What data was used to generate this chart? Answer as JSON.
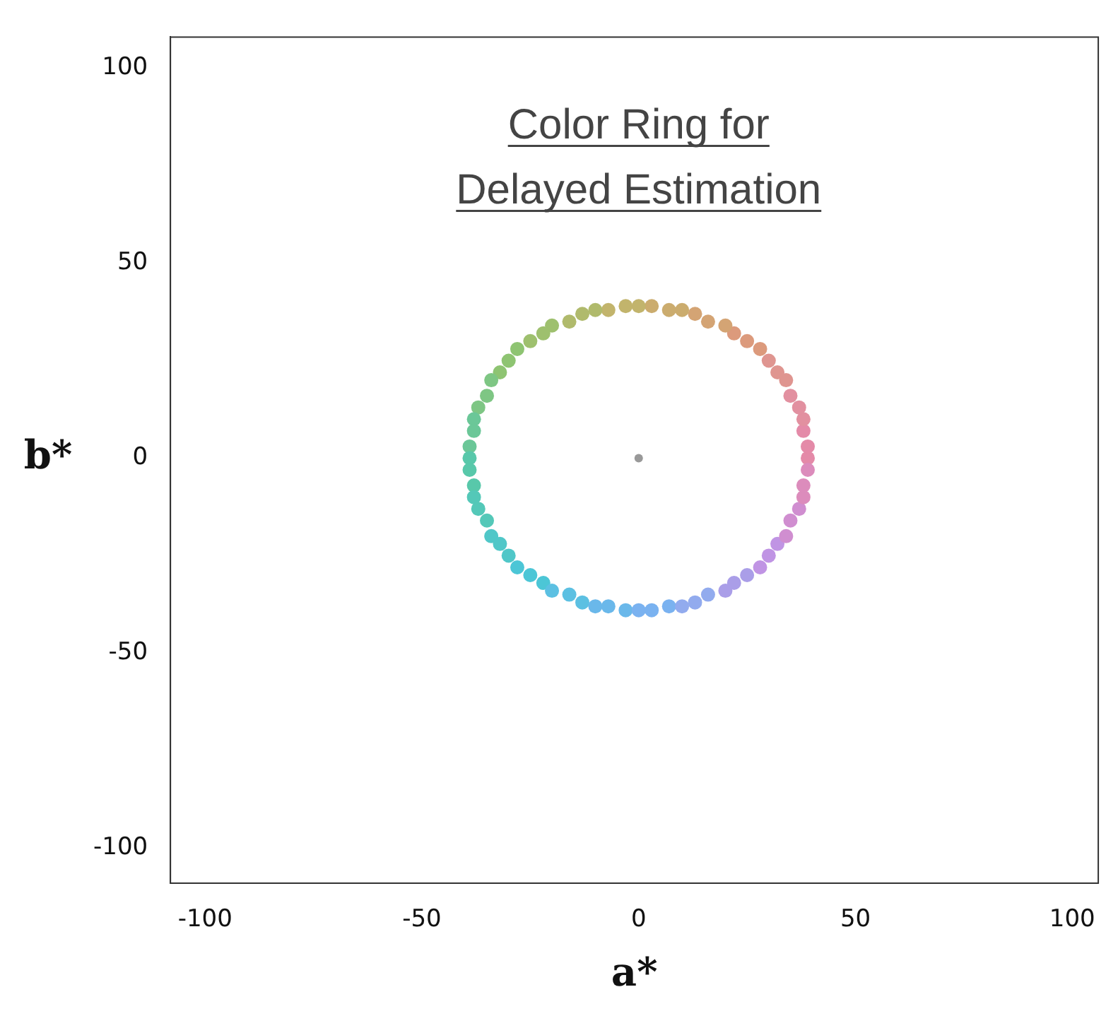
{
  "chart_data": {
    "type": "scatter",
    "title": "Color Ring for\nDelayed Estimation",
    "xlabel": "a*",
    "ylabel": "b*",
    "marker": "circle",
    "xlim": [
      -108,
      106
    ],
    "ylim": [
      -109,
      108
    ],
    "xticks": [
      -100,
      -50,
      0,
      50,
      100
    ],
    "yticks": [
      -100,
      -50,
      0,
      50,
      100
    ],
    "series": [
      {
        "x": [
          39,
          39,
          38,
          38,
          37,
          35,
          34,
          32,
          30,
          28,
          25,
          22,
          20,
          16,
          13,
          10,
          7,
          3,
          0,
          -3,
          -7,
          -10,
          -13,
          -16,
          -20,
          -22,
          -25,
          -28,
          -30,
          -32,
          -34,
          -35,
          -37,
          -38,
          -38,
          -39,
          -39,
          -39,
          -38,
          -38,
          -37,
          -35,
          -34,
          -32,
          -30,
          -28,
          -25,
          -22,
          -20,
          -16,
          -13,
          -10,
          -7,
          -3,
          0,
          3,
          7,
          10,
          13,
          16,
          20,
          22,
          25,
          28,
          30,
          32,
          34,
          35,
          37,
          38,
          38,
          39
        ],
        "values": [
          0,
          3,
          7,
          10,
          13,
          16,
          20,
          22,
          25,
          28,
          30,
          32,
          34,
          35,
          37,
          38,
          38,
          39,
          39,
          39,
          38,
          38,
          37,
          35,
          34,
          32,
          30,
          28,
          25,
          22,
          20,
          16,
          13,
          10,
          7,
          3,
          0,
          -3,
          -7,
          -10,
          -13,
          -16,
          -20,
          -22,
          -25,
          -28,
          -30,
          -32,
          -34,
          -35,
          -37,
          -38,
          -38,
          -39,
          -39,
          -39,
          -38,
          -38,
          -37,
          -35,
          -34,
          -32,
          -30,
          -28,
          -25,
          -22,
          -20,
          -16,
          -13,
          -10,
          -7,
          -3
        ],
        "colors": [
          "#e48aa8",
          "#e48aa8",
          "#e48aa8",
          "#e290a0",
          "#e290a0",
          "#e290a0",
          "#df9590",
          "#df9590",
          "#df9590",
          "#dc9a7c",
          "#dc9a7c",
          "#dc9a7c",
          "#d4a474",
          "#d4a474",
          "#d4a474",
          "#cbac6e",
          "#cbac6e",
          "#cbac6e",
          "#c2b46c",
          "#c2b46c",
          "#c2b46c",
          "#b0ba6c",
          "#b0ba6c",
          "#b0ba6c",
          "#9ec06e",
          "#9ec06e",
          "#9ec06e",
          "#8ec472",
          "#8ec472",
          "#8ec472",
          "#7ec684",
          "#7ec684",
          "#7ec684",
          "#6bc798",
          "#6bc798",
          "#6bc798",
          "#58c8aa",
          "#58c8aa",
          "#58c8aa",
          "#54c8b8",
          "#54c8b8",
          "#54c8b8",
          "#50c7c8",
          "#50c7c8",
          "#50c7c8",
          "#4cc6d6",
          "#4cc6d6",
          "#4cc6d6",
          "#5cc0e2",
          "#5cc0e2",
          "#5cc0e2",
          "#6ab8ea",
          "#6ab8ea",
          "#6ab8ea",
          "#7ab2f0",
          "#7ab2f0",
          "#7ab2f0",
          "#92abee",
          "#92abee",
          "#92abee",
          "#aa9ee8",
          "#aa9ee8",
          "#aa9ee8",
          "#c094e4",
          "#c094e4",
          "#c094e4",
          "#d08ed0",
          "#d08ed0",
          "#d08ed0",
          "#dc8cbc",
          "#dc8cbc",
          "#dc8cbc"
        ]
      },
      {
        "x": [
          0
        ],
        "values": [
          0
        ],
        "color": "#999999"
      }
    ]
  }
}
